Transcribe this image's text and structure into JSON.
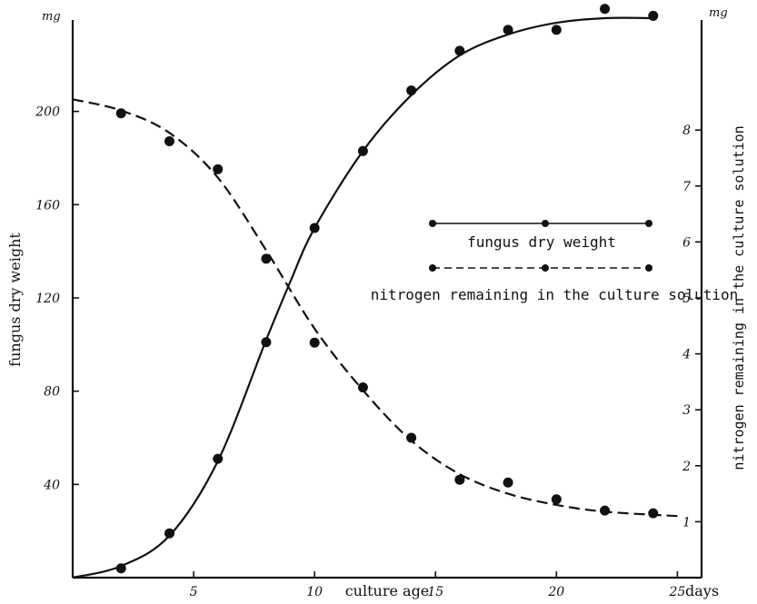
{
  "chart_data": {
    "type": "line",
    "title": "",
    "xlabel": "culture age",
    "x_unit": "days",
    "ylabel_left": "fungus dry weight",
    "ylabel_right": "nitrogen remaining in the culture solution",
    "left_unit": "mg",
    "right_unit": "mg",
    "xlim": [
      0,
      26
    ],
    "ylim_left": [
      0,
      240
    ],
    "ylim_right": [
      0,
      10
    ],
    "x_ticks": [
      5,
      10,
      15,
      20,
      25
    ],
    "y_ticks_left": [
      40,
      80,
      120,
      160,
      200
    ],
    "y_ticks_right": [
      1,
      2,
      3,
      4,
      5,
      6,
      7,
      8
    ],
    "grid": false,
    "legend_position": "right-middle",
    "series": [
      {
        "name": "fungus dry weight",
        "axis": "left",
        "line_style": "solid",
        "points": [
          [
            2,
            4
          ],
          [
            4,
            19
          ],
          [
            6,
            51
          ],
          [
            8,
            101
          ],
          [
            10,
            150
          ],
          [
            12,
            183
          ],
          [
            14,
            209
          ],
          [
            16,
            226
          ],
          [
            18,
            235
          ],
          [
            20,
            235
          ],
          [
            22,
            244
          ],
          [
            24,
            241
          ]
        ],
        "curve": [
          [
            0,
            0
          ],
          [
            2,
            5
          ],
          [
            4,
            18
          ],
          [
            6,
            50
          ],
          [
            8,
            102
          ],
          [
            9,
            127
          ],
          [
            10,
            150
          ],
          [
            12,
            183
          ],
          [
            14,
            207
          ],
          [
            16,
            224
          ],
          [
            18,
            233
          ],
          [
            20,
            238
          ],
          [
            22,
            240
          ],
          [
            24,
            240
          ]
        ]
      },
      {
        "name": "nitrogen remaining in the culture solution",
        "axis": "right",
        "line_style": "dashed",
        "points": [
          [
            2,
            8.3
          ],
          [
            4,
            7.8
          ],
          [
            6,
            7.3
          ],
          [
            8,
            5.7
          ],
          [
            10,
            4.2
          ],
          [
            12,
            3.4
          ],
          [
            14,
            2.5
          ],
          [
            16,
            1.75
          ],
          [
            18,
            1.7
          ],
          [
            20,
            1.4
          ],
          [
            22,
            1.2
          ],
          [
            24,
            1.15
          ]
        ],
        "curve": [
          [
            0,
            8.55
          ],
          [
            2,
            8.35
          ],
          [
            4,
            7.95
          ],
          [
            6,
            7.15
          ],
          [
            8,
            5.85
          ],
          [
            10,
            4.45
          ],
          [
            12,
            3.35
          ],
          [
            14,
            2.45
          ],
          [
            16,
            1.85
          ],
          [
            18,
            1.5
          ],
          [
            20,
            1.3
          ],
          [
            22,
            1.18
          ],
          [
            25,
            1.1
          ]
        ]
      }
    ]
  }
}
